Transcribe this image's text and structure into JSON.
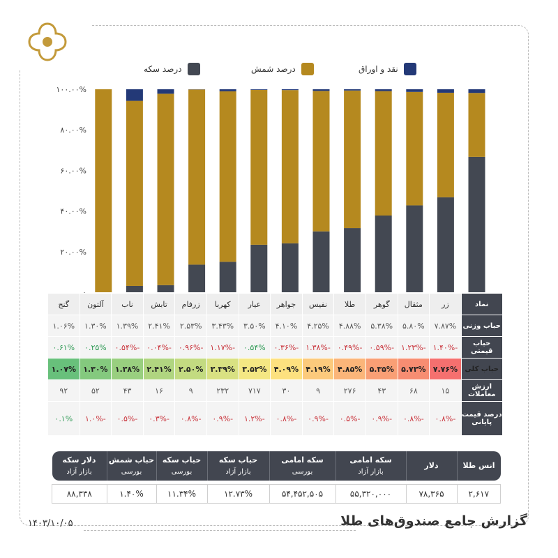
{
  "header": {
    "logo_icon": "quatrefoil-logo-icon"
  },
  "colors": {
    "coin": "#434852",
    "bullion": "#b5891f",
    "cash": "#233977",
    "header_bg": "#424650"
  },
  "legend": [
    {
      "label": "نقد و اوراق",
      "color": "#233977"
    },
    {
      "label": "درصد شمش",
      "color": "#b5891f"
    },
    {
      "label": "درصد سکه",
      "color": "#434852"
    }
  ],
  "chart_data": {
    "type": "bar",
    "stacked": true,
    "categories": [
      "زر",
      "مثقال",
      "گوهر",
      "طلا",
      "نفیس",
      "جواهر",
      "عیار",
      "کهربا",
      "زرفام",
      "تابش",
      "ناب",
      "آلتون",
      "گنج"
    ],
    "series": [
      {
        "name": "درصد سکه",
        "values": [
          66.7,
          46.8,
          42.8,
          37.8,
          31.6,
          30.0,
          24.1,
          23.4,
          15.0,
          13.6,
          3.5,
          3.1,
          0.0
        ]
      },
      {
        "name": "درصد شمش",
        "values": [
          31.5,
          51.5,
          55.9,
          61.3,
          67.8,
          69.2,
          75.5,
          76.3,
          84.0,
          86.3,
          94.3,
          91.2,
          100.0
        ]
      },
      {
        "name": "نقد و اوراق",
        "values": [
          1.8,
          1.7,
          1.3,
          0.9,
          0.6,
          0.8,
          0.4,
          0.3,
          1.0,
          0.1,
          2.2,
          5.7,
          0.0
        ]
      }
    ],
    "ylim": [
      0,
      100
    ],
    "yticks": [
      "۰",
      "۲۰.۰۰%",
      "۴۰.۰۰%",
      "۶۰.۰۰%",
      "۸۰.۰۰%",
      "۱۰۰.۰۰%"
    ],
    "grid": false,
    "legend_position": "top"
  },
  "table": {
    "row_headers": [
      "نماد",
      "حباب وزنی",
      "حباب قیمتی",
      "حباب کلی",
      "ارزش معاملات",
      "درصد قیمت پایانی"
    ],
    "names": [
      "زر",
      "مثقال",
      "گوهر",
      "طلا",
      "نفیس",
      "جواهر",
      "عیار",
      "کهربا",
      "زرفام",
      "تابش",
      "ناب",
      "آلتون",
      "گنج"
    ],
    "weight_bubble": [
      "۷.۸۷%",
      "۵.۸۰%",
      "۵.۳۸%",
      "۴.۸۸%",
      "۴.۲۵%",
      "۴.۱۰%",
      "۳.۵۰%",
      "۳.۴۳%",
      "۲.۵۳%",
      "۲.۴۱%",
      "۱.۳۹%",
      "۱.۳۰%",
      "۱.۰۶%"
    ],
    "price_bubble": [
      "-۱.۴۰%",
      "-۱.۲۳%",
      "-۰.۵۹%",
      "-۰.۴۹%",
      "-۱.۳۸%",
      "-۰.۳۶%",
      "۰.۵۴%",
      "-۱.۱۷%",
      "-۰.۹۶%",
      "-۰.۰۴%",
      "-۰.۵۴%",
      "۰.۲۵%",
      "۰.۶۱%"
    ],
    "price_bubble_sign": [
      "neg",
      "neg",
      "neg",
      "neg",
      "neg",
      "neg",
      "pos",
      "neg",
      "neg",
      "neg",
      "neg",
      "pos",
      "pos"
    ],
    "total_bubble": [
      "۷.۷۶%",
      "۵.۷۳%",
      "۵.۳۵%",
      "۴.۸۵%",
      "۴.۱۹%",
      "۴.۰۹%",
      "۳.۵۲%",
      "۳.۳۹%",
      "۲.۵۰%",
      "۲.۴۱%",
      "۱.۳۸%",
      "۱.۳۰%",
      "۱.۰۷%"
    ],
    "total_bubble_colors": [
      "#f5706f",
      "#f78d72",
      "#f99f75",
      "#fbb579",
      "#fcca7c",
      "#fde17f",
      "#f4e783",
      "#d9e182",
      "#c3db81",
      "#b0d580",
      "#99cf7f",
      "#84c97e",
      "#68c07b"
    ],
    "trade_value": [
      "۱۵",
      "۶۸",
      "۴۳",
      "۲۷۶",
      "۹",
      "۳۰",
      "۷۱۷",
      "۲۳۲",
      "۹",
      "۱۶",
      "۴۳",
      "۵۲",
      "۹۲"
    ],
    "close_change": [
      "-۰.۸%",
      "-۰.۸%",
      "-۰.۹%",
      "-۰.۵%",
      "-۰.۹%",
      "-۰.۸%",
      "-۱.۲%",
      "-۰.۹%",
      "-۰.۸%",
      "-۰.۳%",
      "-۰.۵%",
      "-۱.۰%",
      "۰.۱%"
    ],
    "close_change_sign": [
      "neg",
      "neg",
      "neg",
      "neg",
      "neg",
      "neg",
      "neg",
      "neg",
      "neg",
      "neg",
      "neg",
      "neg",
      "pos"
    ]
  },
  "prices": {
    "headers": [
      {
        "title": "انس طلا",
        "sub": ""
      },
      {
        "title": "دلار",
        "sub": ""
      },
      {
        "title": "سکه امامی",
        "sub": "بازار آزاد"
      },
      {
        "title": "سکه امامی",
        "sub": "بورسی"
      },
      {
        "title": "حباب سکه",
        "sub": "بازار آزاد"
      },
      {
        "title": "حباب سکه",
        "sub": "بورسی"
      },
      {
        "title": "حباب شمش",
        "sub": "بورسی"
      },
      {
        "title": "دلار سکه",
        "sub": "بازار آزاد"
      }
    ],
    "values": [
      "۲,۶۱۷",
      "۷۸,۳۶۵",
      "۵۵,۳۲۰,۰۰۰",
      "۵۴,۴۵۲,۵۰۵",
      "۱۲.۷۳%",
      "۱۱.۳۴%",
      "۱.۴۰%",
      "۸۸,۳۳۸"
    ]
  },
  "footer": {
    "title": "گزارش جامع صندوق‌های طلا",
    "date": "۱۴۰۳/۱۰/۰۵"
  }
}
